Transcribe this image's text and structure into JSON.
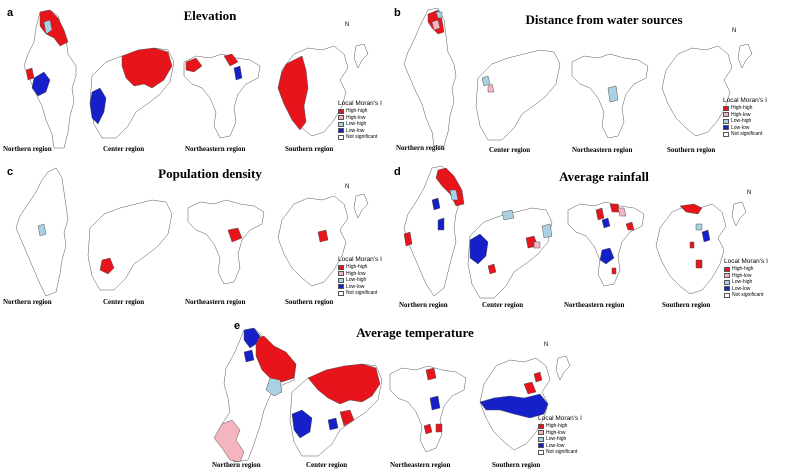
{
  "legend_title": "Local Moran's I",
  "legend_items": [
    {
      "label": "High-high",
      "color": "#e8141b"
    },
    {
      "label": "High-low",
      "color": "#f4b4c0"
    },
    {
      "label": "Low-high",
      "color": "#a9d0e3"
    },
    {
      "label": "Low-low",
      "color": "#1520c9"
    },
    {
      "label": "Not significant",
      "color": "#ffffff"
    }
  ],
  "regions": [
    "Northern region",
    "Center region",
    "Northeastern region",
    "Southern region"
  ],
  "north_arrow": "N",
  "panels": [
    {
      "letter": "a",
      "title": "Elevation"
    },
    {
      "letter": "b",
      "title": "Distance from water sources"
    },
    {
      "letter": "c",
      "title": "Population density"
    },
    {
      "letter": "d",
      "title": "Average rainfall"
    },
    {
      "letter": "e",
      "title": "Average temperature"
    }
  ]
}
